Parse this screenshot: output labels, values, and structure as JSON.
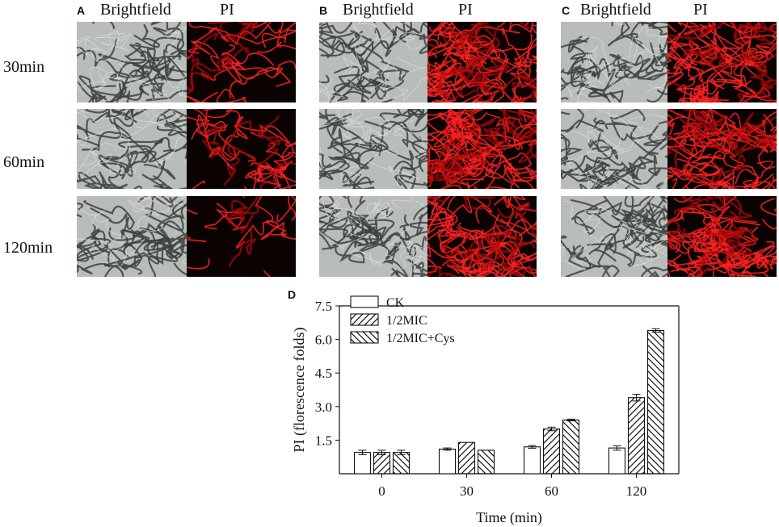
{
  "panels": [
    {
      "letter": "A",
      "bf_label": "Brightfield",
      "pi_label": "PI"
    },
    {
      "letter": "B",
      "bf_label": "Brightfield",
      "pi_label": "PI"
    },
    {
      "letter": "C",
      "bf_label": "Brightfield",
      "pi_label": "PI"
    }
  ],
  "row_labels": [
    "30min",
    "60min",
    "120min"
  ],
  "chart_panel_letter": "D",
  "chart_data": {
    "type": "bar",
    "categories": [
      "0",
      "30",
      "60",
      "120"
    ],
    "series": [
      {
        "name": "CK",
        "values": [
          0.95,
          1.1,
          1.2,
          1.15
        ],
        "errors": [
          0.1,
          0.05,
          0.06,
          0.1
        ],
        "pattern": "none"
      },
      {
        "name": "1/2MIC",
        "values": [
          0.95,
          1.4,
          2.0,
          3.4
        ],
        "errors": [
          0.1,
          0.0,
          0.08,
          0.15
        ],
        "pattern": "forward"
      },
      {
        "name": "1/2MIC+Cys",
        "values": [
          0.95,
          1.05,
          2.4,
          6.4
        ],
        "errors": [
          0.1,
          0.0,
          0.04,
          0.08
        ],
        "pattern": "backward"
      }
    ],
    "xlabel": "Time (min)",
    "ylabel": "PI (florescence folds)",
    "ylim": [
      0,
      7.5
    ],
    "yticks": [
      "1.5",
      "3.0",
      "4.5",
      "6.0",
      "7.5"
    ],
    "legend_position": "top-left"
  }
}
